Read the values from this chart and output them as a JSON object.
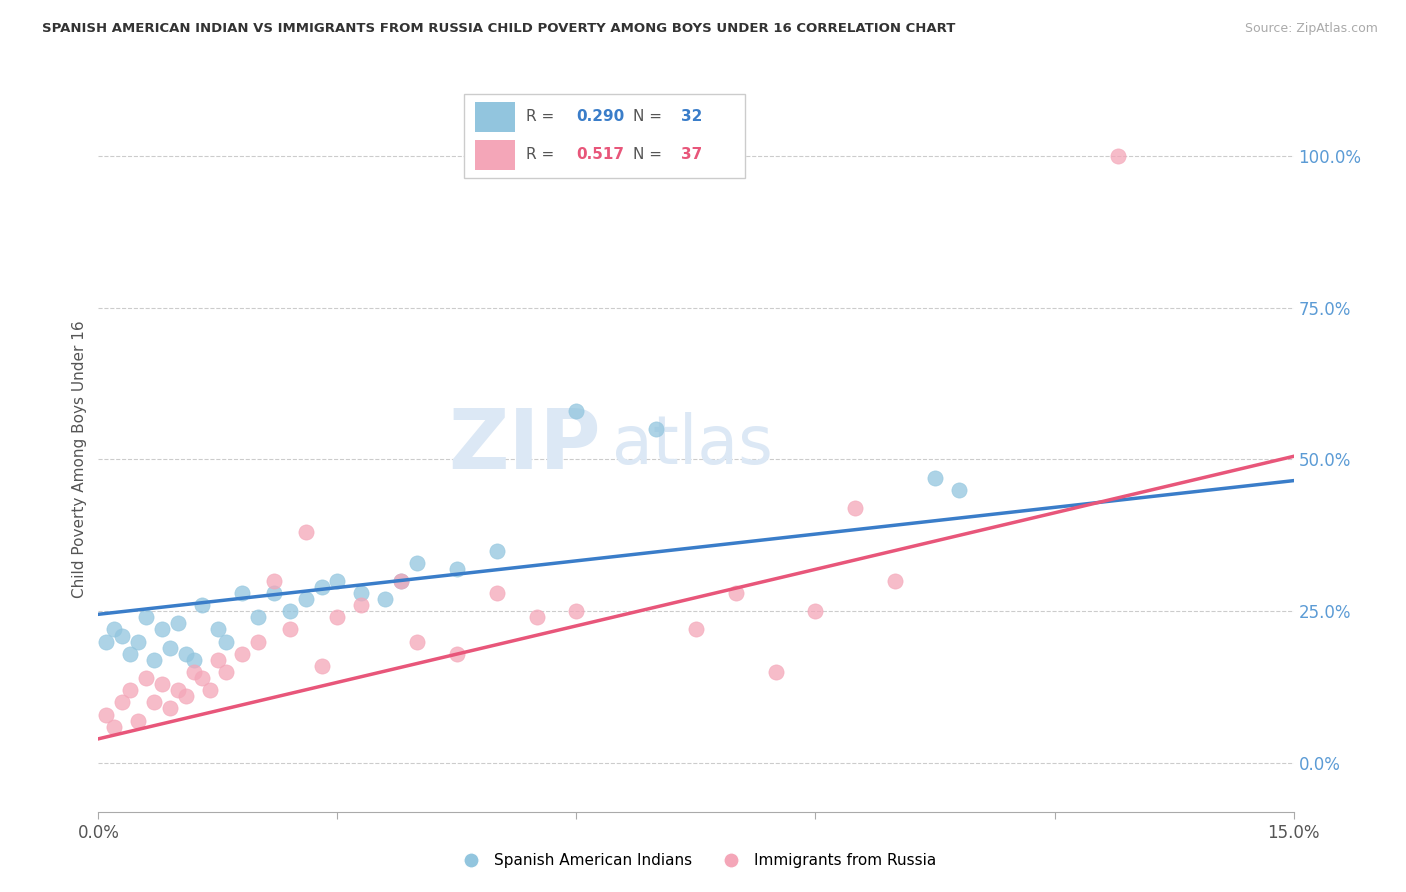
{
  "title": "SPANISH AMERICAN INDIAN VS IMMIGRANTS FROM RUSSIA CHILD POVERTY AMONG BOYS UNDER 16 CORRELATION CHART",
  "source": "Source: ZipAtlas.com",
  "ylabel": "Child Poverty Among Boys Under 16",
  "watermark_zip": "ZIP",
  "watermark_atlas": "atlas",
  "blue_color": "#92c5de",
  "pink_color": "#f4a6b8",
  "blue_line_color": "#3a7dc9",
  "pink_line_color": "#e8567a",
  "blue_tick_color": "#5b9bd5",
  "R_blue": 0.29,
  "N_blue": 32,
  "R_pink": 0.517,
  "N_pink": 37,
  "legend_label_blue": "Spanish American Indians",
  "legend_label_pink": "Immigrants from Russia",
  "xlim": [
    0.0,
    0.15
  ],
  "ylim": [
    -0.08,
    1.08
  ],
  "yticks": [
    0.0,
    0.25,
    0.5,
    0.75,
    1.0
  ],
  "ytick_labels": [
    "0.0%",
    "25.0%",
    "50.0%",
    "75.0%",
    "100.0%"
  ],
  "xtick_vals": [
    0.0,
    0.03,
    0.06,
    0.09,
    0.12,
    0.15
  ],
  "xtick_labels": [
    "0.0%",
    "",
    "",
    "",
    "",
    "15.0%"
  ],
  "blue_x": [
    0.001,
    0.002,
    0.003,
    0.004,
    0.005,
    0.006,
    0.007,
    0.008,
    0.009,
    0.01,
    0.011,
    0.012,
    0.013,
    0.015,
    0.016,
    0.018,
    0.02,
    0.022,
    0.024,
    0.026,
    0.028,
    0.03,
    0.033,
    0.036,
    0.038,
    0.04,
    0.045,
    0.05,
    0.06,
    0.07,
    0.105,
    0.108
  ],
  "blue_y": [
    0.2,
    0.22,
    0.21,
    0.18,
    0.2,
    0.24,
    0.17,
    0.22,
    0.19,
    0.23,
    0.18,
    0.17,
    0.26,
    0.22,
    0.2,
    0.28,
    0.24,
    0.28,
    0.25,
    0.27,
    0.29,
    0.3,
    0.28,
    0.27,
    0.3,
    0.33,
    0.32,
    0.35,
    0.58,
    0.55,
    0.47,
    0.45
  ],
  "pink_x": [
    0.001,
    0.002,
    0.003,
    0.004,
    0.005,
    0.006,
    0.007,
    0.008,
    0.009,
    0.01,
    0.011,
    0.012,
    0.013,
    0.014,
    0.015,
    0.016,
    0.018,
    0.02,
    0.022,
    0.024,
    0.026,
    0.028,
    0.03,
    0.033,
    0.038,
    0.04,
    0.045,
    0.05,
    0.055,
    0.06,
    0.075,
    0.08,
    0.085,
    0.09,
    0.095,
    0.1,
    0.128
  ],
  "pink_y": [
    0.08,
    0.06,
    0.1,
    0.12,
    0.07,
    0.14,
    0.1,
    0.13,
    0.09,
    0.12,
    0.11,
    0.15,
    0.14,
    0.12,
    0.17,
    0.15,
    0.18,
    0.2,
    0.3,
    0.22,
    0.38,
    0.16,
    0.24,
    0.26,
    0.3,
    0.2,
    0.18,
    0.28,
    0.24,
    0.25,
    0.22,
    0.28,
    0.15,
    0.25,
    0.42,
    0.3,
    1.0
  ],
  "blue_line_x0": 0.0,
  "blue_line_y0": 0.245,
  "blue_line_x1": 0.15,
  "blue_line_y1": 0.465,
  "pink_line_x0": 0.0,
  "pink_line_y0": 0.04,
  "pink_line_x1": 0.15,
  "pink_line_y1": 0.505
}
